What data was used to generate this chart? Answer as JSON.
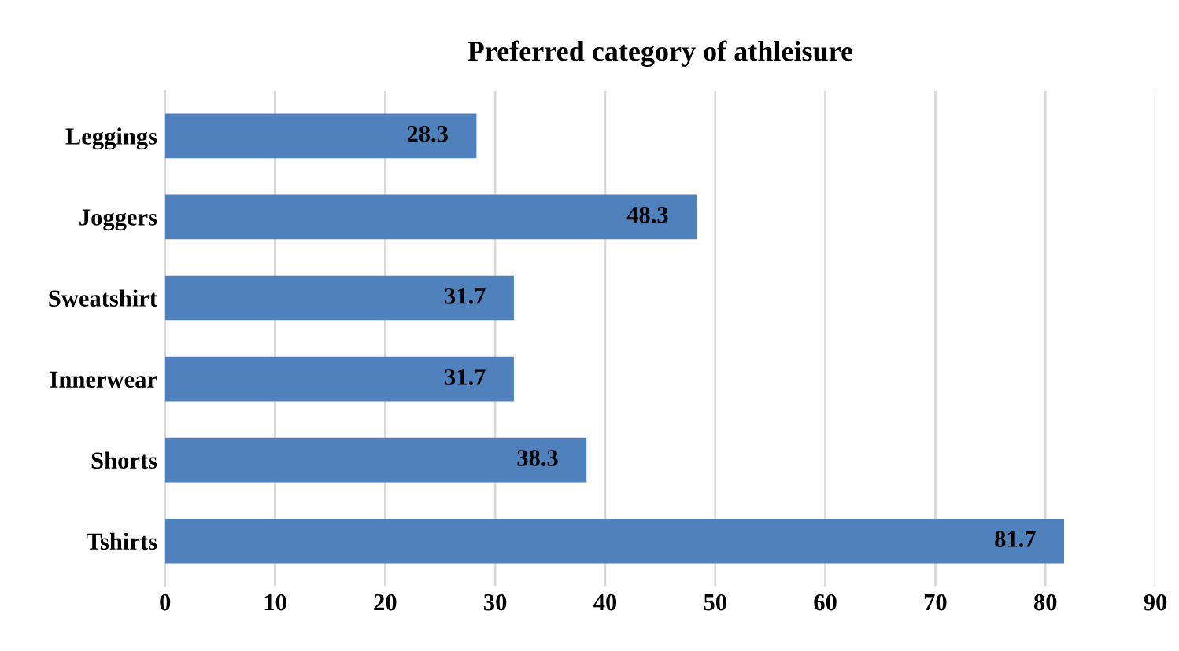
{
  "chart_data": {
    "type": "bar",
    "orientation": "horizontal",
    "title": "Preferred category of athleisure",
    "categories": [
      "Leggings",
      "Joggers",
      "Sweatshirt",
      "Innerwear",
      "Shorts",
      "Tshirts"
    ],
    "values": [
      28.3,
      48.3,
      31.7,
      31.7,
      38.3,
      81.7
    ],
    "color": "#4f81bd",
    "xlim": [
      0,
      90
    ],
    "xticks": [
      0,
      10,
      20,
      30,
      40,
      50,
      60,
      70,
      80,
      90
    ],
    "grid": "x",
    "data_labels": true
  }
}
